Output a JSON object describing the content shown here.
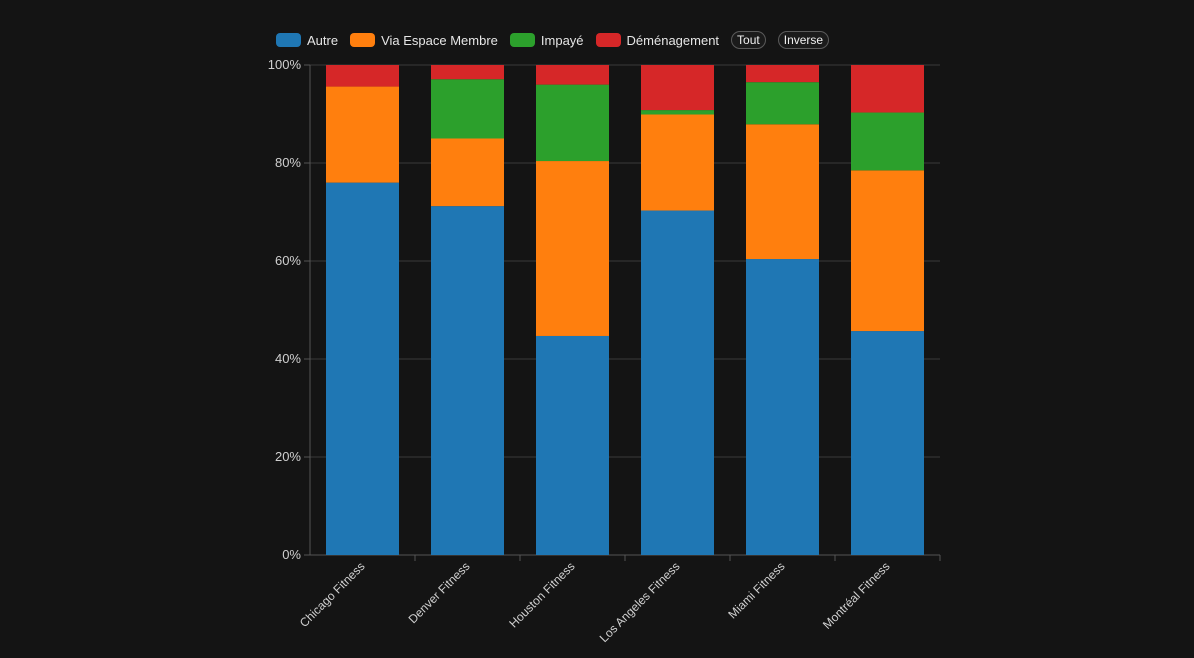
{
  "legend": {
    "items": [
      {
        "label": "Autre",
        "color": "#1f77b4"
      },
      {
        "label": "Via Espace Membre",
        "color": "#ff7f0e"
      },
      {
        "label": "Impayé",
        "color": "#2ca02c"
      },
      {
        "label": "Déménagement",
        "color": "#d62728"
      }
    ],
    "all_label": "Tout",
    "invert_label": "Inverse"
  },
  "chart_data": {
    "type": "bar",
    "stacked": true,
    "normalized_percent": true,
    "categories": [
      "Chicago Fitness",
      "Denver Fitness",
      "Houston Fitness",
      "Los Angeles Fitness",
      "Miami Fitness",
      "Montréal Fitness"
    ],
    "series": [
      {
        "name": "Autre",
        "color": "#1f77b4",
        "values": [
          76,
          71.2,
          44.7,
          70.3,
          60.4,
          45.7
        ]
      },
      {
        "name": "Via Espace Membre",
        "color": "#ff7f0e",
        "values": [
          19.6,
          13.8,
          35.7,
          19.6,
          27.5,
          32.8
        ]
      },
      {
        "name": "Impayé",
        "color": "#2ca02c",
        "values": [
          0,
          12.1,
          15.6,
          0.9,
          8.6,
          11.8
        ]
      },
      {
        "name": "Déménagement",
        "color": "#d62728",
        "values": [
          4.4,
          2.9,
          4.0,
          9.2,
          3.5,
          9.7
        ]
      }
    ],
    "ylim": [
      0,
      100
    ],
    "y_ticks": [
      "0%",
      "20%",
      "40%",
      "60%",
      "80%",
      "100%"
    ],
    "grid": true,
    "legend_position": "top-left"
  }
}
